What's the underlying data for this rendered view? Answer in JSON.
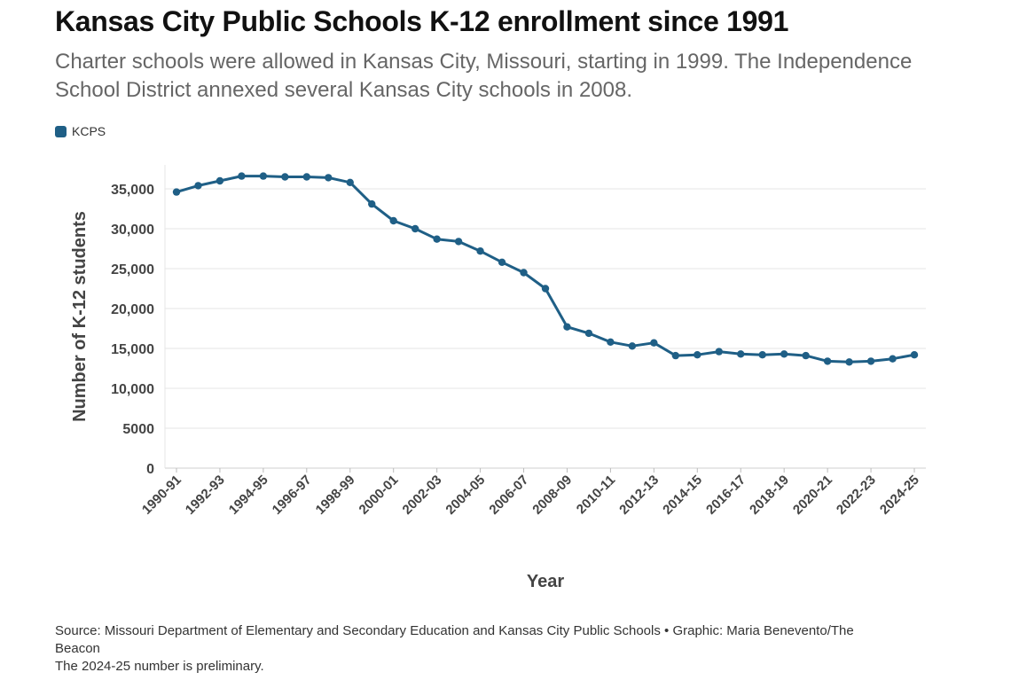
{
  "title": "Kansas City Public Schools K-12 enrollment since 1991",
  "subtitle": "Charter schools were allowed in Kansas City, Missouri, starting in 1999. The Independence School District annexed several Kansas City schools in 2008.",
  "colors": {
    "series": "#1f5f86",
    "grid": "#e6e6e6",
    "axis_text": "#444444"
  },
  "footer": {
    "source": "Source: Missouri Department of Elementary and Secondary Education and Kansas City Public Schools • Graphic: Maria Benevento/The Beacon",
    "note": "The 2024-25 number is preliminary."
  },
  "chart_data": {
    "type": "line",
    "xlabel": "Year",
    "ylabel": "Number of K-12 students",
    "ylim": [
      0,
      38000
    ],
    "yticks": [
      0,
      5000,
      10000,
      15000,
      20000,
      25000,
      30000,
      35000
    ],
    "ytick_labels": [
      "0",
      "5000",
      "10,000",
      "15,000",
      "20,000",
      "25,000",
      "30,000",
      "35,000"
    ],
    "grid": true,
    "legend_position": "top-left",
    "categories": [
      "1990-91",
      "1991-92",
      "1992-93",
      "1993-94",
      "1994-95",
      "1995-96",
      "1996-97",
      "1997-98",
      "1998-99",
      "1999-00",
      "2000-01",
      "2001-02",
      "2002-03",
      "2003-04",
      "2004-05",
      "2005-06",
      "2006-07",
      "2007-08",
      "2008-09",
      "2009-10",
      "2010-11",
      "2011-12",
      "2012-13",
      "2013-14",
      "2014-15",
      "2015-16",
      "2016-17",
      "2017-18",
      "2018-19",
      "2019-20",
      "2020-21",
      "2021-22",
      "2022-23",
      "2023-24",
      "2024-25"
    ],
    "xtick_labels": [
      "1990-91",
      "1992-93",
      "1994-95",
      "1996-97",
      "1998-99",
      "2000-01",
      "2002-03",
      "2004-05",
      "2006-07",
      "2008-09",
      "2010-11",
      "2012-13",
      "2014-15",
      "2016-17",
      "2018-19",
      "2020-21",
      "2022-23",
      "2024-25"
    ],
    "series": [
      {
        "name": "KCPS",
        "color": "#1f5f86",
        "values": [
          34600,
          35400,
          36000,
          36600,
          36600,
          36500,
          36500,
          36400,
          35800,
          33100,
          31000,
          30000,
          28700,
          28400,
          27200,
          25800,
          24500,
          22500,
          17700,
          16900,
          15800,
          15300,
          15700,
          14100,
          14200,
          14600,
          14300,
          14200,
          14300,
          14100,
          13400,
          13300,
          13400,
          13700,
          14200
        ]
      }
    ]
  }
}
